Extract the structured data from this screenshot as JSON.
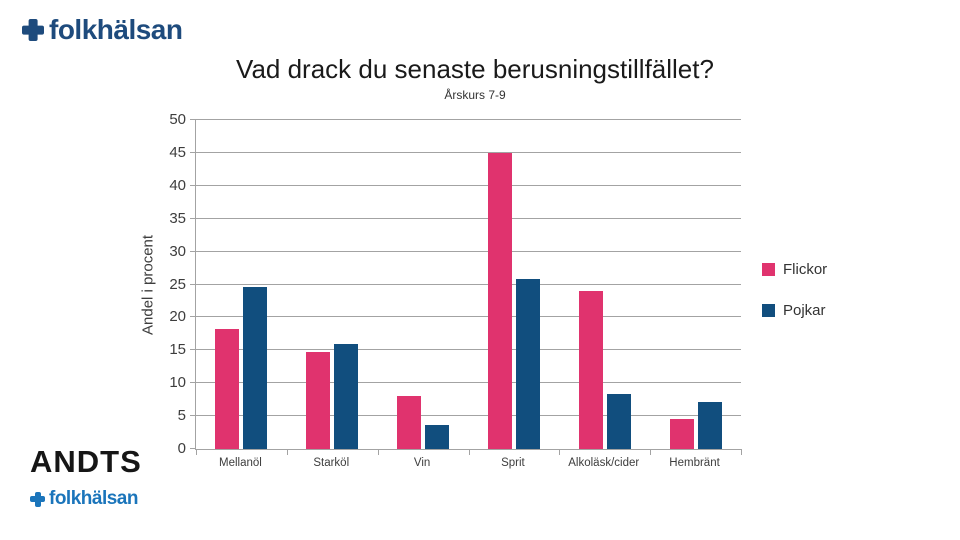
{
  "header": {
    "logo_text": "folkhälsan"
  },
  "footer": {
    "andts_text": "ANDTS",
    "logo_text": "folkhälsan"
  },
  "colors": {
    "flickor_pink": "#E0336E",
    "pojkar_blue": "#114E7E",
    "logo_navy": "#1E4B7D",
    "logo_bright_blue": "#1B75BB",
    "gridline_gray": "#A3A3A3"
  },
  "chart_data": {
    "type": "bar",
    "title": "Vad drack du senaste berusningstillfället?",
    "subtitle": "Årskurs 7-9",
    "ylabel": "Andel i procent",
    "xlabel": "",
    "ylim": [
      0,
      50
    ],
    "yticks": [
      0,
      5,
      10,
      15,
      20,
      25,
      30,
      35,
      40,
      45,
      50
    ],
    "grid": true,
    "legend_position": "right",
    "categories": [
      "Mellanöl",
      "Starköl",
      "Vin",
      "Sprit",
      "Alkoläsk/cider",
      "Hembränt"
    ],
    "series": [
      {
        "name": "Flickor",
        "color": "#E0336E",
        "values": [
          18.3,
          14.7,
          8.1,
          45.0,
          24.0,
          4.6
        ]
      },
      {
        "name": "Pojkar",
        "color": "#114E7E",
        "values": [
          24.6,
          15.9,
          3.6,
          25.9,
          8.3,
          7.2
        ]
      }
    ]
  }
}
